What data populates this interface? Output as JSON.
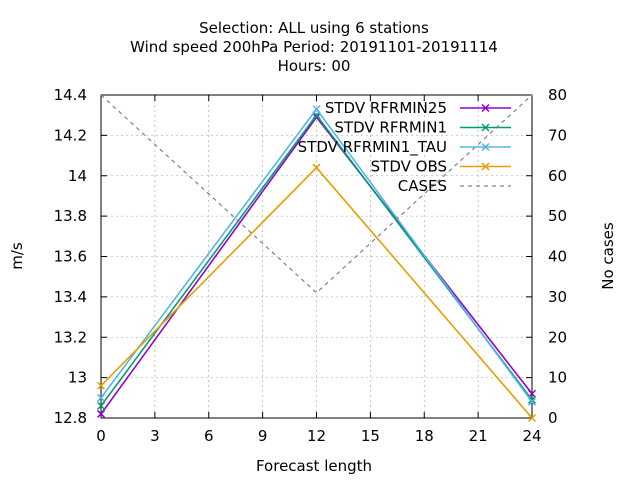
{
  "chart_data": {
    "type": "line",
    "title_lines": [
      "Selection: ALL using     6 stations",
      "Wind speed 200hPa   Period: 20191101-20191114",
      "Hours:  00"
    ],
    "xlabel": "Forecast length",
    "ylabel": "m/s",
    "y2label": "No cases",
    "xlim": [
      0,
      24
    ],
    "ylim": [
      12.8,
      14.4
    ],
    "y2lim": [
      0,
      80
    ],
    "xticks": [
      "0",
      "3",
      "6",
      "9",
      "12",
      "15",
      "18",
      "21",
      "24"
    ],
    "yticks": [
      "12.8",
      "13",
      "13.2",
      "13.4",
      "13.6",
      "13.8",
      "14",
      "14.2",
      "14.4"
    ],
    "y2ticks": [
      "0",
      "10",
      "20",
      "30",
      "40",
      "50",
      "60",
      "70",
      "80"
    ],
    "grid": true,
    "legend_position": "top-right",
    "x": [
      0,
      12,
      24
    ],
    "series": [
      {
        "name": "STDV RFRMIN25",
        "axis": "y",
        "color": "#9400d3",
        "marker": "x",
        "dash": false,
        "values": [
          12.82,
          14.29,
          12.92
        ]
      },
      {
        "name": "STDV RFRMIN1",
        "axis": "y",
        "color": "#009e73",
        "marker": "x",
        "dash": false,
        "values": [
          12.86,
          14.3,
          12.89
        ]
      },
      {
        "name": "STDV RFRMIN1_TAU",
        "axis": "y",
        "color": "#56b4e9",
        "marker": "x",
        "dash": false,
        "values": [
          12.9,
          14.33,
          12.88
        ]
      },
      {
        "name": "STDV OBS",
        "axis": "y",
        "color": "#e69f00",
        "marker": "x",
        "dash": false,
        "values": [
          12.96,
          14.04,
          12.8
        ]
      },
      {
        "name": "CASES",
        "axis": "y2",
        "color": "#808080",
        "marker": "none",
        "dash": true,
        "values": [
          80,
          31,
          80
        ]
      }
    ]
  }
}
